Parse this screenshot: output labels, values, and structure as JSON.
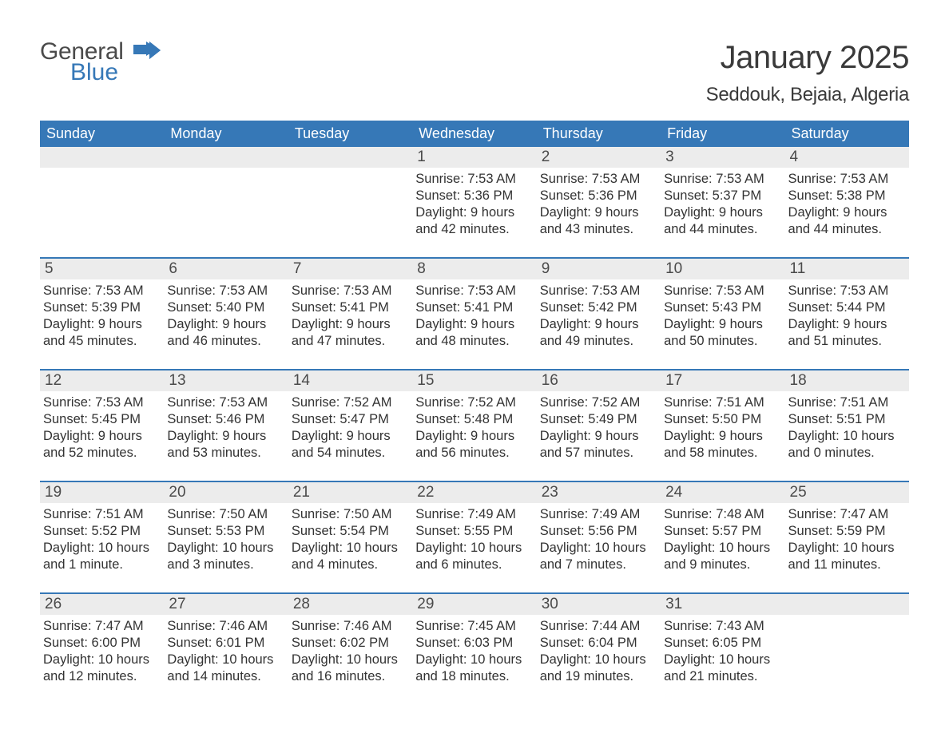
{
  "logo": {
    "general": "General",
    "blue": "Blue",
    "flag_color": "#3678b7"
  },
  "title": {
    "month": "January 2025",
    "location": "Seddouk, Bejaia, Algeria"
  },
  "colors": {
    "header_bg": "#3678b7",
    "header_fg": "#ffffff",
    "daynum_bg": "#ececec",
    "week_border": "#3678b7",
    "text": "#333333",
    "background": "#ffffff"
  },
  "typography": {
    "title_fontsize": 40,
    "location_fontsize": 24,
    "dow_fontsize": 18,
    "daynum_fontsize": 19,
    "body_fontsize": 16.5
  },
  "dow": [
    "Sunday",
    "Monday",
    "Tuesday",
    "Wednesday",
    "Thursday",
    "Friday",
    "Saturday"
  ],
  "weeks": [
    [
      null,
      null,
      null,
      {
        "n": "1",
        "sunrise": "7:53 AM",
        "sunset": "5:36 PM",
        "daylight": "9 hours and 42 minutes."
      },
      {
        "n": "2",
        "sunrise": "7:53 AM",
        "sunset": "5:36 PM",
        "daylight": "9 hours and 43 minutes."
      },
      {
        "n": "3",
        "sunrise": "7:53 AM",
        "sunset": "5:37 PM",
        "daylight": "9 hours and 44 minutes."
      },
      {
        "n": "4",
        "sunrise": "7:53 AM",
        "sunset": "5:38 PM",
        "daylight": "9 hours and 44 minutes."
      }
    ],
    [
      {
        "n": "5",
        "sunrise": "7:53 AM",
        "sunset": "5:39 PM",
        "daylight": "9 hours and 45 minutes."
      },
      {
        "n": "6",
        "sunrise": "7:53 AM",
        "sunset": "5:40 PM",
        "daylight": "9 hours and 46 minutes."
      },
      {
        "n": "7",
        "sunrise": "7:53 AM",
        "sunset": "5:41 PM",
        "daylight": "9 hours and 47 minutes."
      },
      {
        "n": "8",
        "sunrise": "7:53 AM",
        "sunset": "5:41 PM",
        "daylight": "9 hours and 48 minutes."
      },
      {
        "n": "9",
        "sunrise": "7:53 AM",
        "sunset": "5:42 PM",
        "daylight": "9 hours and 49 minutes."
      },
      {
        "n": "10",
        "sunrise": "7:53 AM",
        "sunset": "5:43 PM",
        "daylight": "9 hours and 50 minutes."
      },
      {
        "n": "11",
        "sunrise": "7:53 AM",
        "sunset": "5:44 PM",
        "daylight": "9 hours and 51 minutes."
      }
    ],
    [
      {
        "n": "12",
        "sunrise": "7:53 AM",
        "sunset": "5:45 PM",
        "daylight": "9 hours and 52 minutes."
      },
      {
        "n": "13",
        "sunrise": "7:53 AM",
        "sunset": "5:46 PM",
        "daylight": "9 hours and 53 minutes."
      },
      {
        "n": "14",
        "sunrise": "7:52 AM",
        "sunset": "5:47 PM",
        "daylight": "9 hours and 54 minutes."
      },
      {
        "n": "15",
        "sunrise": "7:52 AM",
        "sunset": "5:48 PM",
        "daylight": "9 hours and 56 minutes."
      },
      {
        "n": "16",
        "sunrise": "7:52 AM",
        "sunset": "5:49 PM",
        "daylight": "9 hours and 57 minutes."
      },
      {
        "n": "17",
        "sunrise": "7:51 AM",
        "sunset": "5:50 PM",
        "daylight": "9 hours and 58 minutes."
      },
      {
        "n": "18",
        "sunrise": "7:51 AM",
        "sunset": "5:51 PM",
        "daylight": "10 hours and 0 minutes."
      }
    ],
    [
      {
        "n": "19",
        "sunrise": "7:51 AM",
        "sunset": "5:52 PM",
        "daylight": "10 hours and 1 minute."
      },
      {
        "n": "20",
        "sunrise": "7:50 AM",
        "sunset": "5:53 PM",
        "daylight": "10 hours and 3 minutes."
      },
      {
        "n": "21",
        "sunrise": "7:50 AM",
        "sunset": "5:54 PM",
        "daylight": "10 hours and 4 minutes."
      },
      {
        "n": "22",
        "sunrise": "7:49 AM",
        "sunset": "5:55 PM",
        "daylight": "10 hours and 6 minutes."
      },
      {
        "n": "23",
        "sunrise": "7:49 AM",
        "sunset": "5:56 PM",
        "daylight": "10 hours and 7 minutes."
      },
      {
        "n": "24",
        "sunrise": "7:48 AM",
        "sunset": "5:57 PM",
        "daylight": "10 hours and 9 minutes."
      },
      {
        "n": "25",
        "sunrise": "7:47 AM",
        "sunset": "5:59 PM",
        "daylight": "10 hours and 11 minutes."
      }
    ],
    [
      {
        "n": "26",
        "sunrise": "7:47 AM",
        "sunset": "6:00 PM",
        "daylight": "10 hours and 12 minutes."
      },
      {
        "n": "27",
        "sunrise": "7:46 AM",
        "sunset": "6:01 PM",
        "daylight": "10 hours and 14 minutes."
      },
      {
        "n": "28",
        "sunrise": "7:46 AM",
        "sunset": "6:02 PM",
        "daylight": "10 hours and 16 minutes."
      },
      {
        "n": "29",
        "sunrise": "7:45 AM",
        "sunset": "6:03 PM",
        "daylight": "10 hours and 18 minutes."
      },
      {
        "n": "30",
        "sunrise": "7:44 AM",
        "sunset": "6:04 PM",
        "daylight": "10 hours and 19 minutes."
      },
      {
        "n": "31",
        "sunrise": "7:43 AM",
        "sunset": "6:05 PM",
        "daylight": "10 hours and 21 minutes."
      },
      null
    ]
  ],
  "labels": {
    "sunrise": "Sunrise: ",
    "sunset": "Sunset: ",
    "daylight": "Daylight: "
  }
}
